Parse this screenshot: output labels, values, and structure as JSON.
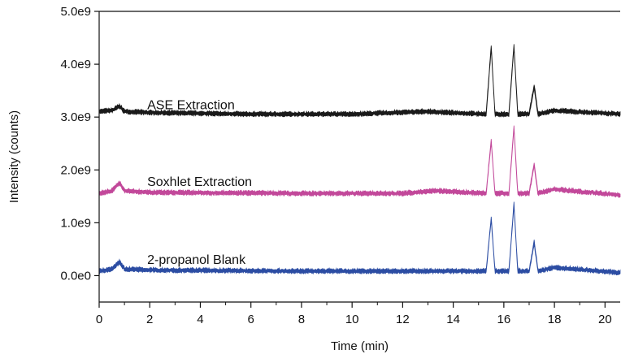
{
  "chart_data": {
    "type": "line",
    "title": "",
    "xlabel": "Time (min)",
    "ylabel": "Intensity (counts)",
    "xlim": [
      0,
      20.6
    ],
    "ylim": [
      -500000000.0,
      5000000000.0
    ],
    "x_ticks": [
      0,
      2,
      4,
      6,
      8,
      10,
      12,
      14,
      16,
      18,
      20
    ],
    "y_ticks": [
      0,
      1000000000.0,
      2000000000.0,
      3000000000.0,
      4000000000.0,
      5000000000.0
    ],
    "x_tick_labels": [
      "0",
      "2",
      "4",
      "6",
      "8",
      "10",
      "12",
      "14",
      "16",
      "18",
      "20"
    ],
    "y_tick_labels": [
      "0.0e0",
      "1.0e9",
      "2.0e9",
      "3.0e9",
      "4.0e9",
      "5.0e9"
    ],
    "grid": false,
    "series": [
      {
        "name": "ASE Extraction",
        "color": "#1a1a1a",
        "baseline": 3000000000.0,
        "noise": 60000000.0,
        "points": [
          [
            0,
            3100000000.0
          ],
          [
            0.5,
            3120000000.0
          ],
          [
            0.8,
            3200000000.0
          ],
          [
            1.0,
            3100000000.0
          ],
          [
            2,
            3080000000.0
          ],
          [
            6,
            3050000000.0
          ],
          [
            10,
            3050000000.0
          ],
          [
            12.9,
            3100000000.0
          ],
          [
            15.3,
            3050000000.0
          ],
          [
            15.5,
            4320000000.0
          ],
          [
            15.65,
            3050000000.0
          ],
          [
            16.2,
            3050000000.0
          ],
          [
            16.4,
            4350000000.0
          ],
          [
            16.55,
            3050000000.0
          ],
          [
            17.0,
            3050000000.0
          ],
          [
            17.2,
            3580000000.0
          ],
          [
            17.35,
            3050000000.0
          ],
          [
            18.0,
            3120000000.0
          ],
          [
            20.6,
            3050000000.0
          ]
        ]
      },
      {
        "name": "Soxhlet Extraction",
        "color": "#c2489a",
        "baseline": 1550000000.0,
        "noise": 60000000.0,
        "points": [
          [
            0,
            1550000000.0
          ],
          [
            0.5,
            1600000000.0
          ],
          [
            0.8,
            1750000000.0
          ],
          [
            1.0,
            1600000000.0
          ],
          [
            2,
            1570000000.0
          ],
          [
            8,
            1550000000.0
          ],
          [
            12,
            1550000000.0
          ],
          [
            13.3,
            1600000000.0
          ],
          [
            15.3,
            1550000000.0
          ],
          [
            15.5,
            2550000000.0
          ],
          [
            15.65,
            1550000000.0
          ],
          [
            16.2,
            1550000000.0
          ],
          [
            16.4,
            2800000000.0
          ],
          [
            16.55,
            1550000000.0
          ],
          [
            17.0,
            1550000000.0
          ],
          [
            17.2,
            2100000000.0
          ],
          [
            17.35,
            1550000000.0
          ],
          [
            18.0,
            1630000000.0
          ],
          [
            20.6,
            1520000000.0
          ]
        ]
      },
      {
        "name": "2-propanol Blank",
        "color": "#2c4da3",
        "baseline": 80000000.0,
        "noise": 60000000.0,
        "points": [
          [
            0,
            80000000.0
          ],
          [
            0.5,
            120000000.0
          ],
          [
            0.8,
            250000000.0
          ],
          [
            1.0,
            120000000.0
          ],
          [
            2,
            100000000.0
          ],
          [
            8,
            80000000.0
          ],
          [
            12,
            80000000.0
          ],
          [
            15.3,
            80000000.0
          ],
          [
            15.5,
            1080000000.0
          ],
          [
            15.65,
            80000000.0
          ],
          [
            16.2,
            80000000.0
          ],
          [
            16.4,
            1350000000.0
          ],
          [
            16.55,
            80000000.0
          ],
          [
            17.0,
            80000000.0
          ],
          [
            17.2,
            620000000.0
          ],
          [
            17.35,
            80000000.0
          ],
          [
            18.0,
            150000000.0
          ],
          [
            20.6,
            50000000.0
          ]
        ]
      }
    ],
    "annotations": [
      {
        "series": "ASE Extraction",
        "text": "ASE Extraction",
        "x": 1.9,
        "y": 3150000000.0
      },
      {
        "series": "Soxhlet Extraction",
        "text": "Soxhlet Extraction",
        "x": 1.9,
        "y": 1700000000.0
      },
      {
        "series": "2-propanol Blank",
        "text": "2-propanol Blank",
        "x": 1.9,
        "y": 220000000.0
      }
    ]
  }
}
